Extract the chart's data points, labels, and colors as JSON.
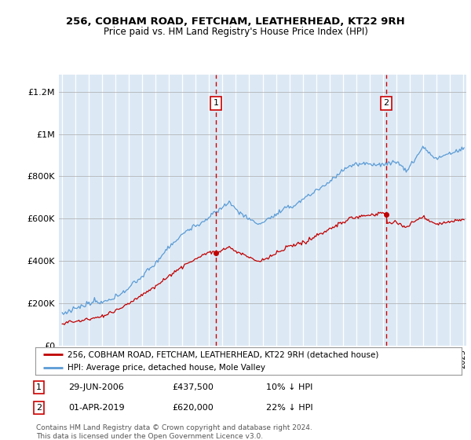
{
  "title_line1": "256, COBHAM ROAD, FETCHAM, LEATHERHEAD, KT22 9RH",
  "title_line2": "Price paid vs. HM Land Registry's House Price Index (HPI)",
  "bg_color": "#dce9f5",
  "hpi_color": "#5b9bd5",
  "sale_color": "#c00000",
  "vline_color": "#cc0000",
  "ylabel_ticks": [
    "£0",
    "£200K",
    "£400K",
    "£600K",
    "£800K",
    "£1M",
    "£1.2M"
  ],
  "ytick_vals": [
    0,
    200000,
    400000,
    600000,
    800000,
    1000000,
    1200000
  ],
  "ylim": [
    0,
    1280000
  ],
  "xlim_start": 1994.75,
  "xlim_end": 2025.25,
  "sale1_x": 2006.5,
  "sale1_y": 437500,
  "sale2_x": 2019.25,
  "sale2_y": 620000,
  "legend_entries": [
    "256, COBHAM ROAD, FETCHAM, LEATHERHEAD, KT22 9RH (detached house)",
    "HPI: Average price, detached house, Mole Valley"
  ],
  "note1_date": "29-JUN-2006",
  "note1_price": "£437,500",
  "note1_hpi": "10% ↓ HPI",
  "note2_date": "01-APR-2019",
  "note2_price": "£620,000",
  "note2_hpi": "22% ↓ HPI",
  "footer": "Contains HM Land Registry data © Crown copyright and database right 2024.\nThis data is licensed under the Open Government Licence v3.0."
}
